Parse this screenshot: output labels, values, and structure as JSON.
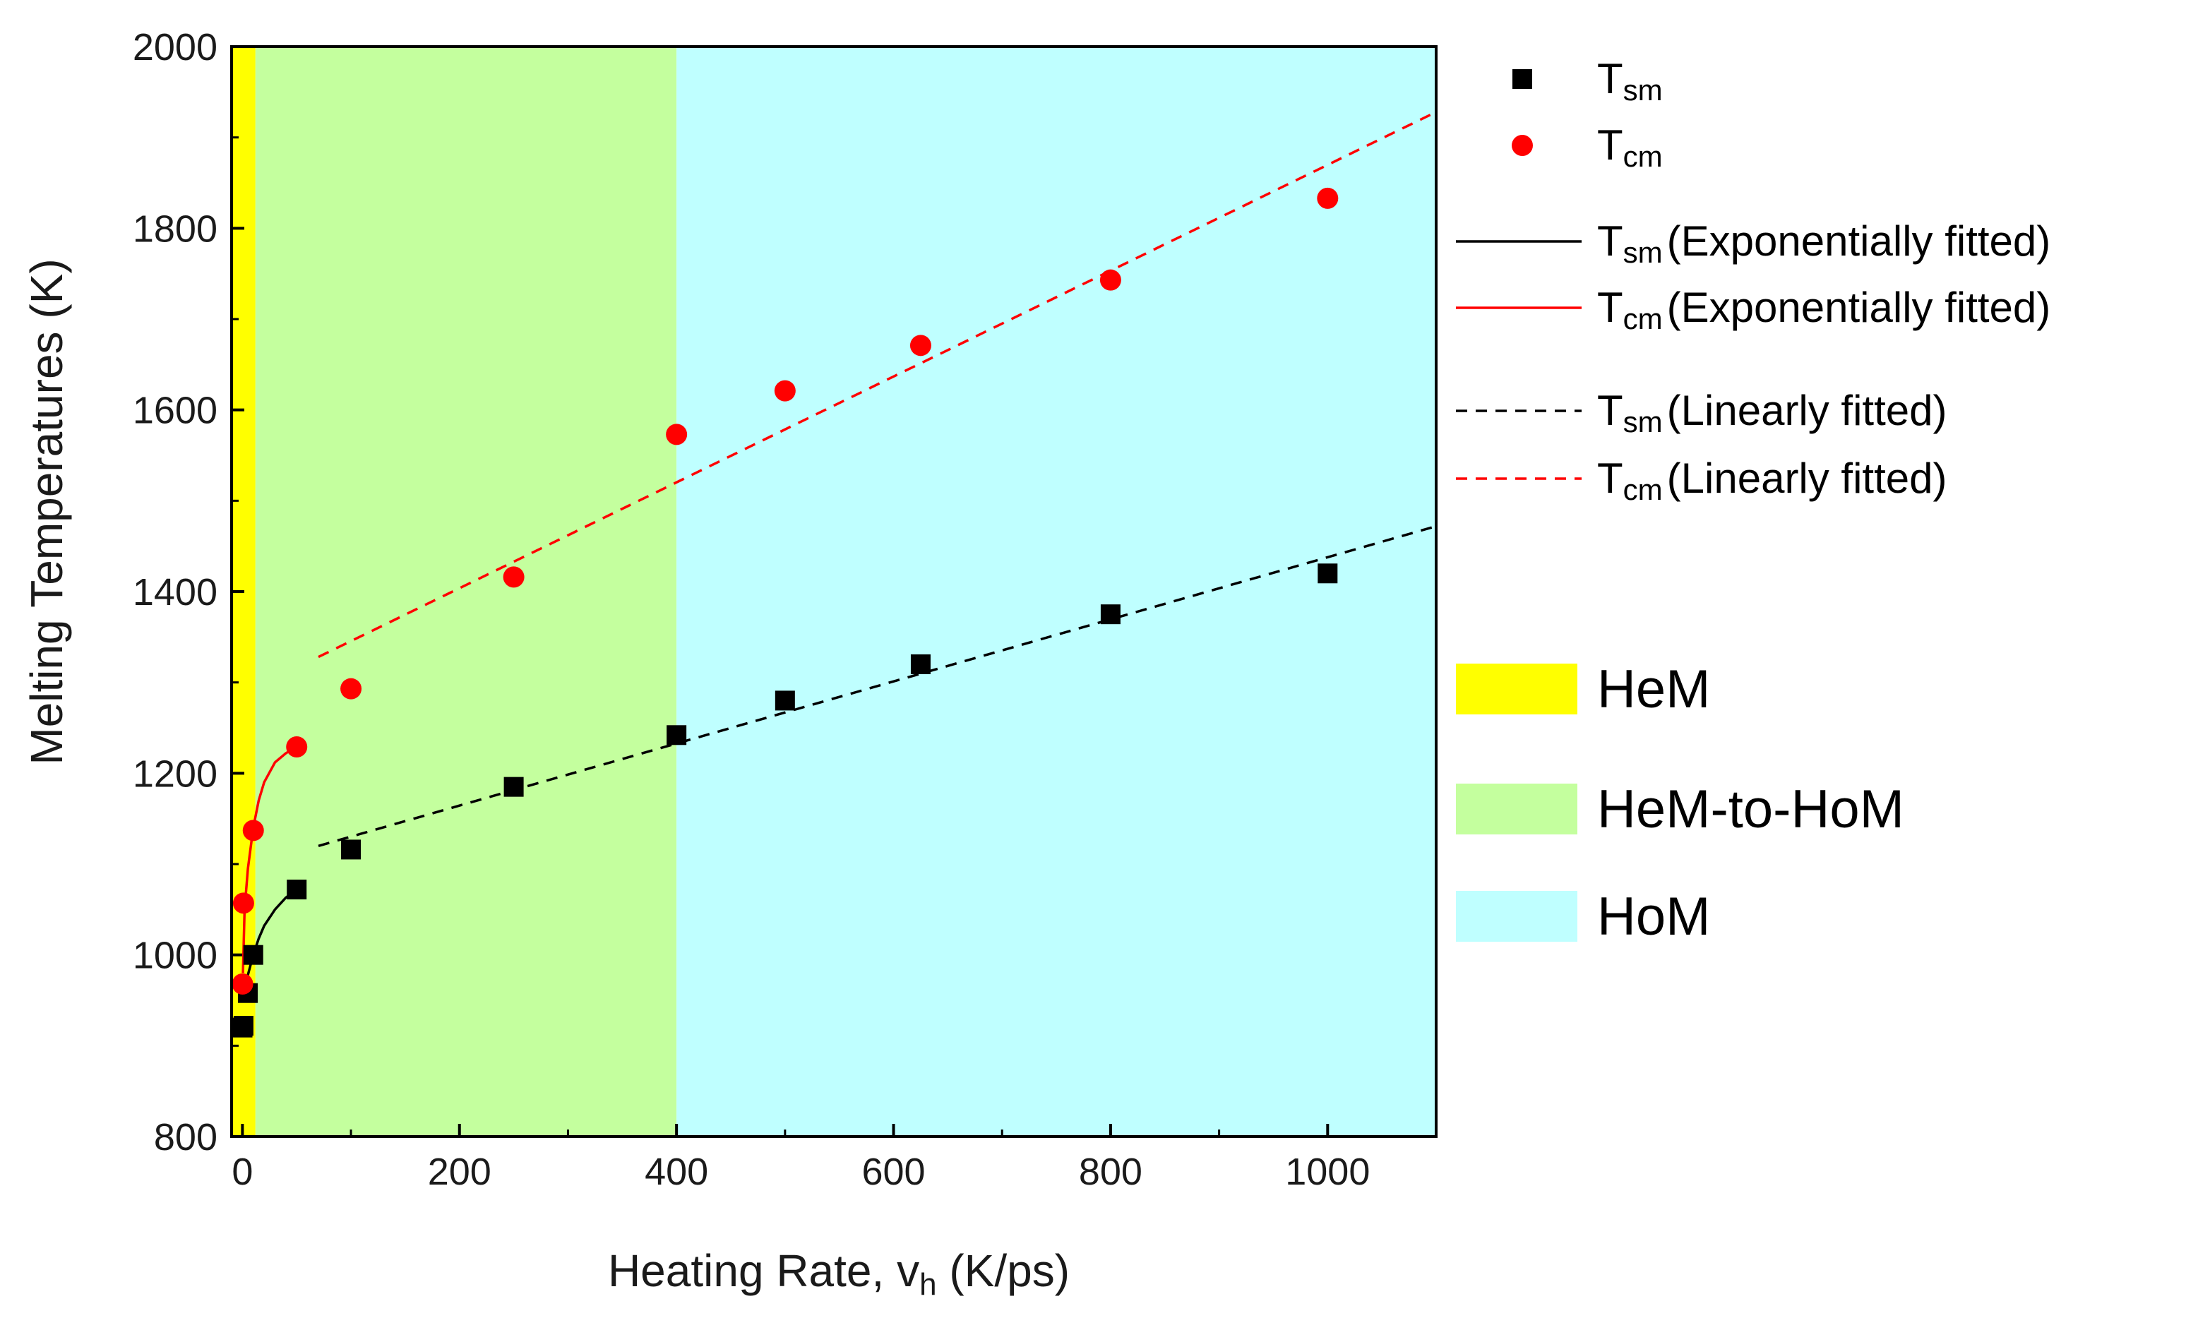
{
  "chart_data": {
    "type": "scatter",
    "xlabel": "Heating Rate, v",
    "xlabel_sub": "h",
    "xlabel_unit": " (K/ps)",
    "ylabel": "Melting Temperatures (K)",
    "xlim": [
      -10,
      1100
    ],
    "ylim": [
      800,
      2000
    ],
    "xticks": [
      0,
      200,
      400,
      600,
      800,
      1000
    ],
    "yticks": [
      800,
      1000,
      1200,
      1400,
      1600,
      1800,
      2000
    ],
    "regions": [
      {
        "name": "HeM",
        "x_range": [
          -10,
          12
        ],
        "color": "#FFFF00"
      },
      {
        "name": "HeM-to-HoM",
        "x_range": [
          12,
          400
        ],
        "color": "#C4FF9E"
      },
      {
        "name": "HoM",
        "x_range": [
          400,
          1100
        ],
        "color": "#BFFFFF"
      }
    ],
    "series": [
      {
        "name": "T",
        "sub": "sm",
        "marker": "square",
        "color": "#000000",
        "points": [
          [
            0.1,
            920
          ],
          [
            1,
            922
          ],
          [
            5,
            958
          ],
          [
            10,
            1000
          ],
          [
            50,
            1072
          ],
          [
            100,
            1116
          ],
          [
            250,
            1185
          ],
          [
            400,
            1242
          ],
          [
            500,
            1280
          ],
          [
            625,
            1320
          ],
          [
            800,
            1375
          ],
          [
            1000,
            1420
          ]
        ]
      },
      {
        "name": "T",
        "sub": "cm",
        "marker": "circle",
        "color": "#FF0000",
        "points": [
          [
            0.1,
            968
          ],
          [
            1,
            1057
          ],
          [
            10,
            1137
          ],
          [
            50,
            1229
          ],
          [
            100,
            1293
          ],
          [
            250,
            1416
          ],
          [
            400,
            1573
          ],
          [
            500,
            1621
          ],
          [
            625,
            1671
          ],
          [
            800,
            1743
          ],
          [
            1000,
            1833
          ]
        ]
      }
    ],
    "fits": [
      {
        "name": "T",
        "sub": "sm",
        "kind": "Exponentially fitted",
        "style": "solid",
        "color": "#000000",
        "points": [
          [
            2,
            960
          ],
          [
            5,
            978
          ],
          [
            10,
            1000
          ],
          [
            15,
            1018
          ],
          [
            20,
            1032
          ],
          [
            30,
            1050
          ],
          [
            40,
            1063
          ],
          [
            50,
            1072
          ]
        ]
      },
      {
        "name": "T",
        "sub": "cm",
        "kind": "Exponentially fitted",
        "style": "solid",
        "color": "#FF0000",
        "points": [
          [
            0.5,
            980
          ],
          [
            2,
            1050
          ],
          [
            5,
            1095
          ],
          [
            10,
            1140
          ],
          [
            15,
            1170
          ],
          [
            20,
            1190
          ],
          [
            30,
            1212
          ],
          [
            40,
            1222
          ],
          [
            50,
            1229
          ]
        ]
      },
      {
        "name": "T",
        "sub": "sm",
        "kind": "Linearly fitted",
        "style": "dashed",
        "color": "#000000",
        "points": [
          [
            70,
            1120
          ],
          [
            1100,
            1472
          ]
        ]
      },
      {
        "name": "T",
        "sub": "cm",
        "kind": "Linearly fitted",
        "style": "dashed",
        "color": "#FF0000",
        "points": [
          [
            70,
            1328
          ],
          [
            1100,
            1928
          ]
        ]
      }
    ],
    "legend": {
      "markers": [
        {
          "label": "T",
          "sub": "sm"
        },
        {
          "label": "T",
          "sub": "cm"
        }
      ],
      "lines": [
        {
          "label": "T",
          "sub": "sm",
          "text": "(Exponentially fitted)"
        },
        {
          "label": "T",
          "sub": "cm",
          "text": "(Exponentially fitted)"
        },
        {
          "label": "T",
          "sub": "sm",
          "text": "(Linearly fitted)"
        },
        {
          "label": "T",
          "sub": "cm",
          "text": "(Linearly fitted)"
        }
      ],
      "regions": [
        {
          "label": "HeM"
        },
        {
          "label": "HeM-to-HoM"
        },
        {
          "label": "HoM"
        }
      ]
    }
  }
}
